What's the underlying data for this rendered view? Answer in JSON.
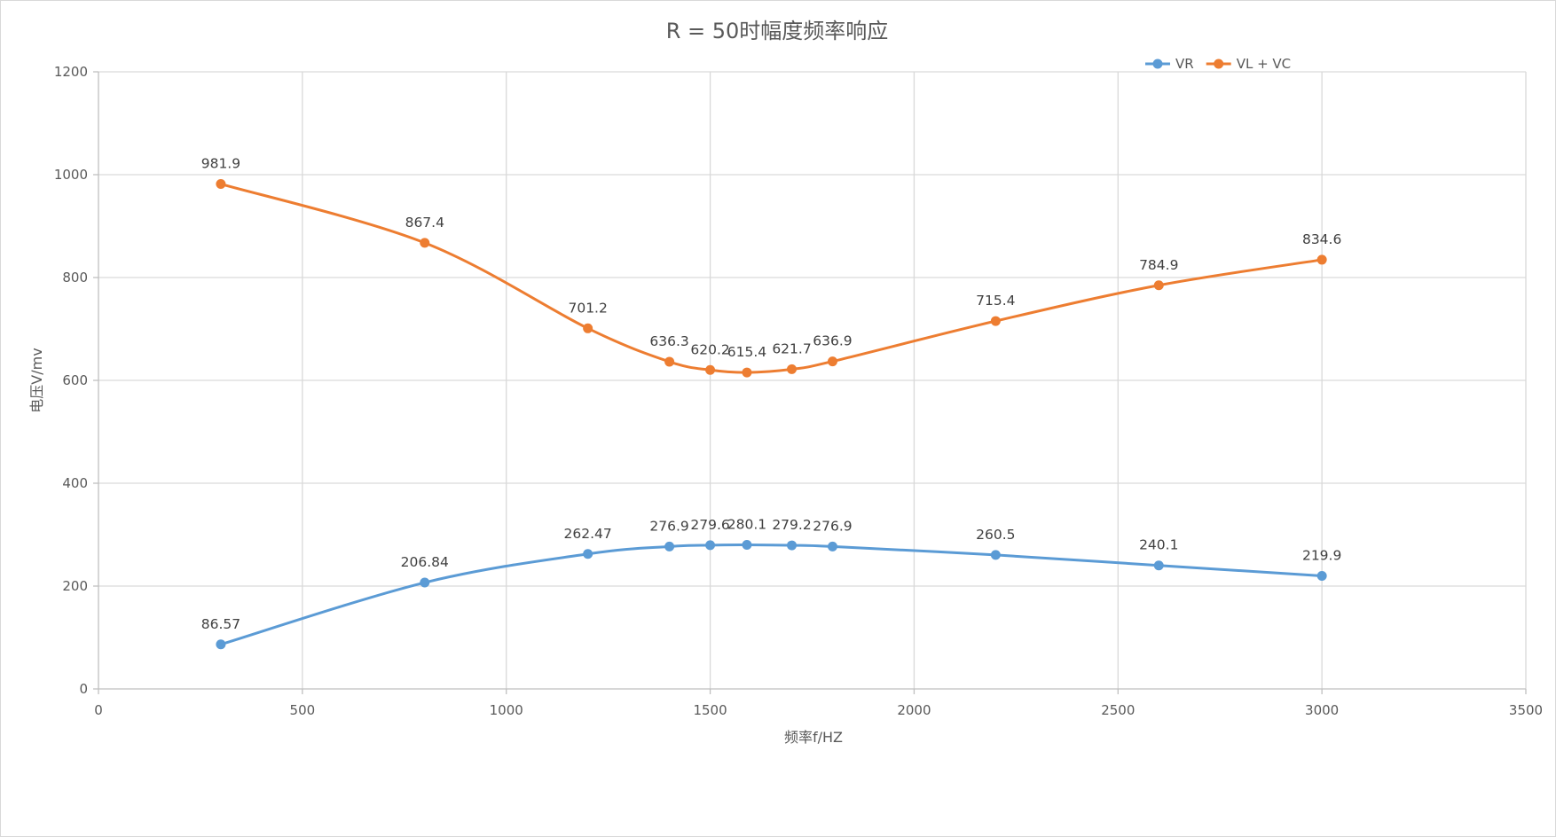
{
  "chart_data": {
    "type": "scatter",
    "title": "R = 50时幅度频率响应",
    "xlabel": "频率f/HZ",
    "ylabel": "电压V/mv",
    "xlim": [
      0,
      3500
    ],
    "ylim": [
      0,
      1200
    ],
    "xticks": [
      0,
      500,
      1000,
      1500,
      2000,
      2500,
      3000,
      3500
    ],
    "yticks": [
      0,
      200,
      400,
      600,
      800,
      1000,
      1200
    ],
    "grid": true,
    "smooth_lines": true,
    "legend_position": "top-right",
    "series": [
      {
        "name": "VR",
        "color": "#5B9BD5",
        "x": [
          300,
          800,
          1200,
          1400,
          1500,
          1590,
          1700,
          1800,
          2200,
          2600,
          3000
        ],
        "y": [
          86.57,
          206.84,
          262.47,
          276.9,
          279.6,
          280.1,
          279.2,
          276.9,
          260.5,
          240.1,
          219.9
        ],
        "labels": [
          "86.57",
          "206.84",
          "262.47",
          "276.9",
          "279.6",
          "280.1",
          "279.2",
          "276.9",
          "260.5",
          "240.1",
          "219.9"
        ]
      },
      {
        "name": "VL + VC",
        "color": "#ED7D31",
        "x": [
          300,
          800,
          1200,
          1400,
          1500,
          1590,
          1700,
          1800,
          2200,
          2600,
          3000
        ],
        "y": [
          981.9,
          867.4,
          701.2,
          636.3,
          620.2,
          615.4,
          621.7,
          636.9,
          715.4,
          784.9,
          834.6
        ],
        "labels": [
          "981.9",
          "867.4",
          "701.2",
          "636.3",
          "620.2",
          "615.4",
          "621.7",
          "636.9",
          "715.4",
          "784.9",
          "834.6"
        ]
      }
    ]
  }
}
